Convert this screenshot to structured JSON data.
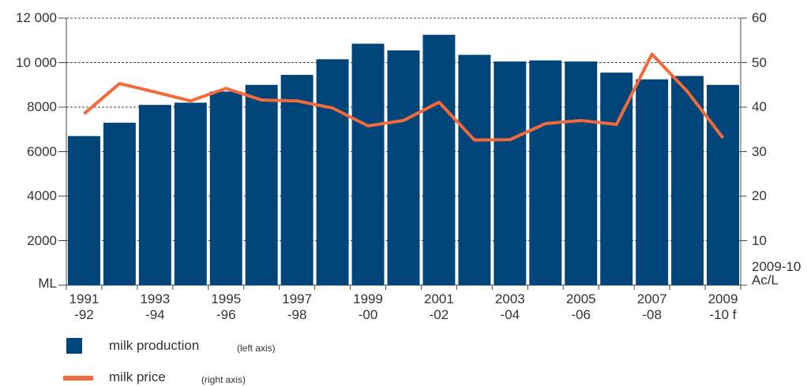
{
  "chart_data": {
    "type": "bar_line",
    "categories": [
      "1991\n-92",
      null,
      "1993\n-94",
      null,
      "1995\n-96",
      null,
      "1997\n-98",
      null,
      "1999\n-00",
      null,
      "2001\n-02",
      null,
      "2003\n-04",
      null,
      "2005\n-06",
      null,
      "2007\n-08",
      null,
      "2009\n-10 f"
    ],
    "series": [
      {
        "name": "milk production",
        "legend_note": "(left axis)",
        "type": "bar",
        "color": "#00457a",
        "values": [
          6700,
          7300,
          8100,
          8200,
          8700,
          9000,
          9450,
          10150,
          10850,
          10550,
          11250,
          10350,
          10050,
          10100,
          10050,
          9550,
          9250,
          9400,
          9000
        ]
      },
      {
        "name": "milk price",
        "legend_note": "(right axis)",
        "type": "line",
        "axis": "y2",
        "color": "#f26a3b",
        "values": [
          38.5,
          45.3,
          43.4,
          41.4,
          44.2,
          41.6,
          41.4,
          39.8,
          35.8,
          37.0,
          41.1,
          32.6,
          32.7,
          36.3,
          37.0,
          36.1,
          51.9,
          43.5,
          33.1
        ]
      }
    ],
    "ylabel": "ML",
    "y2label": "2009-10\nAc/L",
    "ylim": [
      0,
      12000
    ],
    "yticks": [
      2000,
      4000,
      6000,
      8000,
      {
        "value": 10000,
        "label": "10 000"
      },
      {
        "value": 12000,
        "label": "12 000"
      }
    ],
    "y2lim": [
      0,
      60
    ],
    "y2ticks": [
      10,
      20,
      30,
      40,
      50,
      60
    ],
    "grid": true
  }
}
